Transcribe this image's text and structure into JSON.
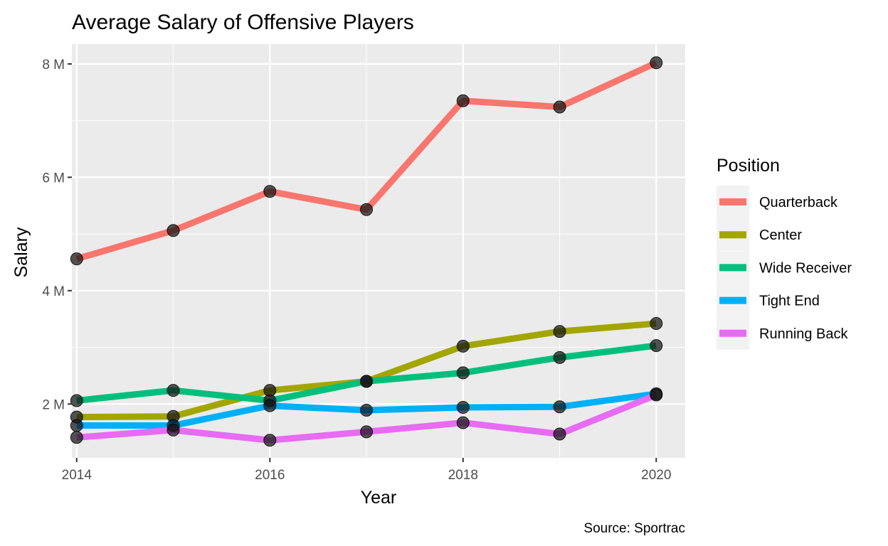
{
  "chart_data": {
    "type": "line",
    "title": "Average Salary of Offensive Players",
    "xlabel": "Year",
    "ylabel": "Salary",
    "caption": "Source: Sportrac",
    "x": [
      2014,
      2015,
      2016,
      2017,
      2018,
      2019,
      2020
    ],
    "xlim": [
      2013.95,
      2020.3
    ],
    "ylim": [
      1.05,
      8.35
    ],
    "x_ticks": [
      2014,
      2016,
      2018,
      2020
    ],
    "x_tick_labels": [
      "2014",
      "2016",
      "2018",
      "2020"
    ],
    "y_ticks": [
      2,
      4,
      6,
      8
    ],
    "y_tick_labels": [
      "2 M",
      "4 M",
      "6 M",
      "8 M"
    ],
    "grid": true,
    "legend": {
      "title": "Position",
      "position": "right"
    },
    "series": [
      {
        "name": "Quarterback",
        "color": "#F8766D",
        "values": [
          4.56,
          5.06,
          5.75,
          5.43,
          7.35,
          7.24,
          8.02
        ]
      },
      {
        "name": "Center",
        "color": "#A3A500",
        "values": [
          1.77,
          1.78,
          2.24,
          2.4,
          3.02,
          3.28,
          3.42
        ]
      },
      {
        "name": "Wide Receiver",
        "color": "#00BF7D",
        "values": [
          2.06,
          2.24,
          2.06,
          2.4,
          2.55,
          2.82,
          3.03
        ]
      },
      {
        "name": "Tight End",
        "color": "#00B0F6",
        "values": [
          1.62,
          1.62,
          1.97,
          1.89,
          1.94,
          1.95,
          2.18
        ]
      },
      {
        "name": "Running Back",
        "color": "#E76BF3",
        "values": [
          1.41,
          1.54,
          1.36,
          1.51,
          1.67,
          1.47,
          2.16
        ]
      }
    ]
  }
}
